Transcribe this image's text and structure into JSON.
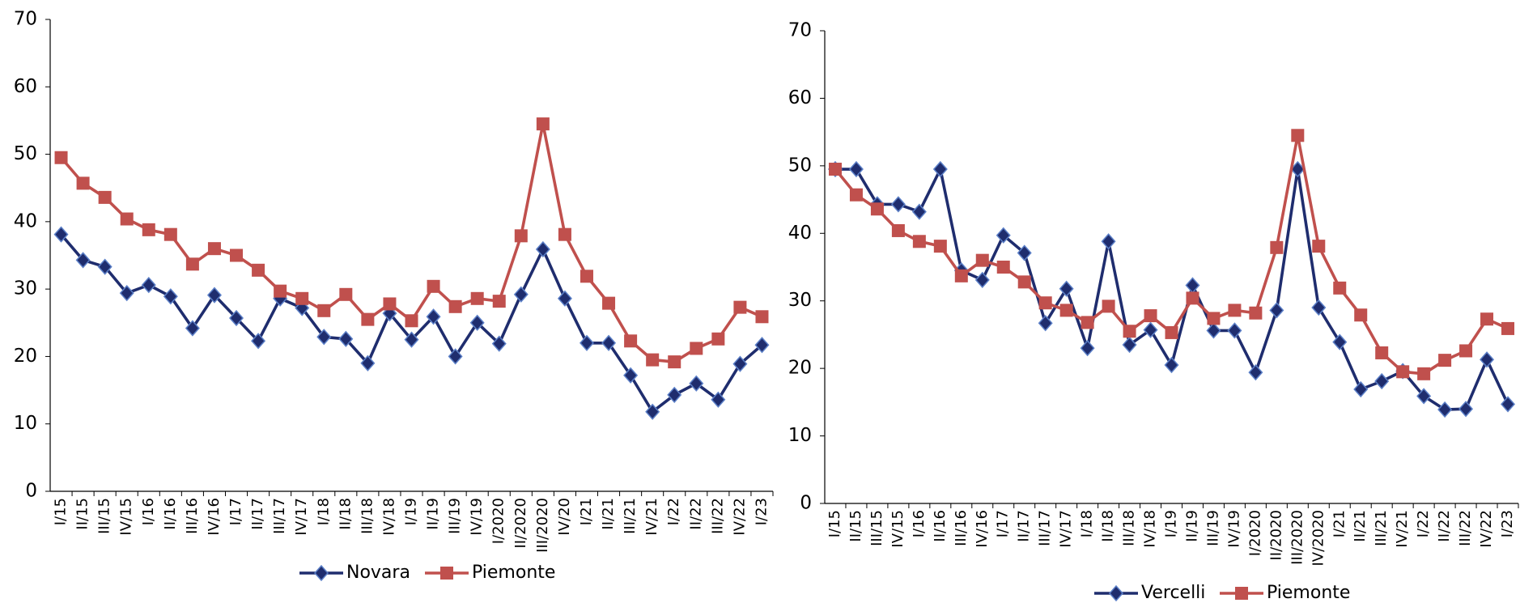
{
  "chart_data": [
    {
      "type": "line",
      "categories": [
        "I/15",
        "II/15",
        "III/15",
        "IV/15",
        "I/16",
        "II/16",
        "III/16",
        "IV/16",
        "I/17",
        "II/17",
        "III/17",
        "IV/17",
        "I/18",
        "II/18",
        "III/18",
        "IV/18",
        "I/19",
        "II/19",
        "III/19",
        "IV/19",
        "I/2020",
        "II/2020",
        "III/2020",
        "IV/20",
        "I/21",
        "II/21",
        "III/21",
        "IV/21",
        "I/22",
        "II/22",
        "III/22",
        "IV/22",
        "I/23"
      ],
      "series": [
        {
          "name": "Novara",
          "color": "#1f2d6e",
          "marker": "diamond",
          "values": [
            38.1,
            34.3,
            33.3,
            29.4,
            30.6,
            28.9,
            24.2,
            29.1,
            25.7,
            22.3,
            28.6,
            27.2,
            22.9,
            22.6,
            19,
            26.4,
            22.5,
            25.9,
            20,
            25,
            21.9,
            29.2,
            35.9,
            28.6,
            22,
            22,
            17.2,
            11.8,
            14.3,
            16,
            13.6,
            18.9,
            21.7
          ]
        },
        {
          "name": "Piemonte",
          "color": "#c0504d",
          "marker": "square",
          "values": [
            49.5,
            45.7,
            43.6,
            40.4,
            38.8,
            38.1,
            33.7,
            36,
            35,
            32.8,
            29.7,
            28.6,
            26.8,
            29.2,
            25.5,
            27.8,
            25.3,
            30.4,
            27.4,
            28.6,
            28.2,
            37.9,
            54.5,
            38.1,
            31.9,
            27.9,
            22.3,
            19.5,
            19.2,
            21.2,
            22.6,
            27.3,
            25.9
          ]
        }
      ],
      "ylim": [
        0,
        70
      ],
      "yticks": [
        0,
        10,
        20,
        30,
        40,
        50,
        60,
        70
      ]
    },
    {
      "type": "line",
      "categories": [
        "I/15",
        "II/15",
        "III/15",
        "IV/15",
        "I/16",
        "II/16",
        "III/16",
        "IV/16",
        "I/17",
        "II/17",
        "III/17",
        "IV/17",
        "I/18",
        "II/18",
        "III/18",
        "IV/18",
        "I/19",
        "II/19",
        "III/19",
        "IV/19",
        "I/2020",
        "II/2020",
        "III/2020",
        "IV/2020",
        "I/21",
        "II/21",
        "III/21",
        "IV/21",
        "I/22",
        "II/22",
        "III/22",
        "IV/22",
        "I/23"
      ],
      "series": [
        {
          "name": "Vercelli",
          "color": "#1f2d6e",
          "marker": "diamond",
          "values": [
            49.5,
            49.5,
            44.3,
            44.3,
            43.2,
            49.5,
            34.5,
            33.1,
            39.7,
            37.1,
            26.7,
            31.8,
            23,
            38.8,
            23.5,
            25.7,
            20.5,
            32.3,
            25.6,
            25.6,
            19.4,
            28.6,
            49.5,
            29,
            23.9,
            16.9,
            18.1,
            19.6,
            15.9,
            13.9,
            14,
            21.3,
            14.7
          ]
        },
        {
          "name": "Piemonte",
          "color": "#c0504d",
          "marker": "square",
          "values": [
            49.5,
            45.7,
            43.6,
            40.4,
            38.8,
            38.1,
            33.7,
            36,
            35,
            32.8,
            29.7,
            28.6,
            26.8,
            29.2,
            25.5,
            27.8,
            25.3,
            30.4,
            27.4,
            28.6,
            28.2,
            37.9,
            54.5,
            38.1,
            31.9,
            27.9,
            22.3,
            19.5,
            19.2,
            21.2,
            22.6,
            27.3,
            25.9
          ]
        }
      ],
      "ylim": [
        0,
        70
      ],
      "yticks": [
        0,
        10,
        20,
        30,
        40,
        50,
        60,
        70
      ]
    }
  ]
}
